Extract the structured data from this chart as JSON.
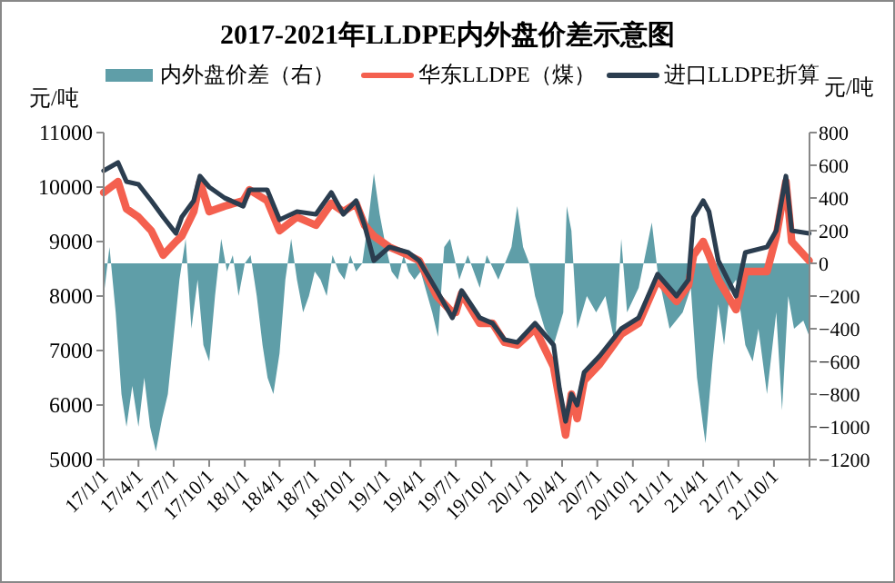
{
  "chart_data": {
    "type": "line",
    "title": "2017-2021年LLDPE内外盘价差示意图",
    "ylabel": "元/吨",
    "y2label": "元/吨",
    "legend": "top",
    "xlim": [
      "2017-01-01",
      "2022-01-01"
    ],
    "xticks": [
      {
        "value": "2017-01-01",
        "label": "17/1/1"
      },
      {
        "value": "2017-04-01",
        "label": "17/4/1"
      },
      {
        "value": "2017-07-01",
        "label": "17/7/1"
      },
      {
        "value": "2017-10-01",
        "label": "17/10/1"
      },
      {
        "value": "2018-01-01",
        "label": "18/1/1"
      },
      {
        "value": "2018-04-01",
        "label": "18/4/1"
      },
      {
        "value": "2018-07-01",
        "label": "18/7/1"
      },
      {
        "value": "2018-10-01",
        "label": "18/10/1"
      },
      {
        "value": "2019-01-01",
        "label": "19/1/1"
      },
      {
        "value": "2019-04-01",
        "label": "19/4/1"
      },
      {
        "value": "2019-07-01",
        "label": "19/7/1"
      },
      {
        "value": "2019-10-01",
        "label": "19/10/1"
      },
      {
        "value": "2020-01-01",
        "label": "20/1/1"
      },
      {
        "value": "2020-04-01",
        "label": "20/4/1"
      },
      {
        "value": "2020-07-01",
        "label": "20/7/1"
      },
      {
        "value": "2020-10-01",
        "label": "20/10/1"
      },
      {
        "value": "2021-01-01",
        "label": "21/1/1"
      },
      {
        "value": "2021-04-01",
        "label": "21/4/1"
      },
      {
        "value": "2021-07-01",
        "label": "21/7/1"
      },
      {
        "value": "2021-10-01",
        "label": "21/10/1"
      },
      {
        "value": "2022-01-01",
        "label": null
      }
    ],
    "ylim": [
      5000,
      11000
    ],
    "yticks": [
      5000,
      6000,
      7000,
      8000,
      9000,
      10000,
      11000
    ],
    "y2lim": [
      -1200,
      800
    ],
    "y2ticks": [
      -1200,
      -1000,
      -800,
      -600,
      -400,
      -200,
      0,
      200,
      400,
      600,
      800
    ],
    "series": [
      {
        "name": "内外盘价差（右）",
        "type": "area",
        "axis": "y2",
        "color": "#5f9ea8",
        "x": [
          "2017-01-01",
          "2017-01-16",
          "2017-02-01",
          "2017-02-16",
          "2017-03-01",
          "2017-03-16",
          "2017-04-01",
          "2017-04-16",
          "2017-05-01",
          "2017-05-16",
          "2017-06-01",
          "2017-06-16",
          "2017-07-01",
          "2017-07-16",
          "2017-08-01",
          "2017-08-16",
          "2017-09-01",
          "2017-09-16",
          "2017-10-01",
          "2017-10-16",
          "2017-11-01",
          "2017-11-16",
          "2017-12-01",
          "2017-12-16",
          "2018-01-01",
          "2018-01-16",
          "2018-02-01",
          "2018-02-16",
          "2018-03-01",
          "2018-03-16",
          "2018-04-01",
          "2018-04-16",
          "2018-05-01",
          "2018-05-16",
          "2018-06-01",
          "2018-06-16",
          "2018-07-01",
          "2018-07-16",
          "2018-08-01",
          "2018-08-16",
          "2018-09-01",
          "2018-09-16",
          "2018-10-01",
          "2018-10-16",
          "2018-11-01",
          "2018-11-16",
          "2018-12-01",
          "2018-12-16",
          "2019-01-01",
          "2019-01-16",
          "2019-02-01",
          "2019-02-16",
          "2019-03-01",
          "2019-03-16",
          "2019-04-01",
          "2019-05-01",
          "2019-05-16",
          "2019-06-01",
          "2019-06-16",
          "2019-07-10",
          "2019-08-01",
          "2019-09-01",
          "2019-09-19",
          "2019-10-19",
          "2019-11-22",
          "2019-12-07",
          "2019-12-22",
          "2020-01-07",
          "2020-01-22",
          "2020-02-16",
          "2020-03-10",
          "2020-04-04",
          "2020-04-13",
          "2020-04-25",
          "2020-05-10",
          "2020-06-04",
          "2020-06-28",
          "2020-07-22",
          "2020-08-16",
          "2020-09-01",
          "2020-09-16",
          "2020-10-16",
          "2020-11-19",
          "2020-12-04",
          "2021-01-04",
          "2021-02-07",
          "2021-02-28",
          "2021-03-16",
          "2021-04-01",
          "2021-04-07",
          "2021-04-25",
          "2021-05-10",
          "2021-05-25",
          "2021-06-10",
          "2021-06-25",
          "2021-07-19",
          "2021-08-07",
          "2021-08-22",
          "2021-09-13",
          "2021-10-07",
          "2021-10-22",
          "2021-11-07",
          "2021-11-22",
          "2021-12-16",
          "2022-01-01"
        ],
        "values": [
          -200,
          100,
          -300,
          -800,
          -1000,
          -750,
          -1000,
          -700,
          -1000,
          -1150,
          -950,
          -800,
          -450,
          -100,
          150,
          -400,
          -100,
          -500,
          -600,
          -200,
          150,
          -50,
          50,
          -200,
          0,
          50,
          -200,
          -500,
          -700,
          -800,
          -550,
          -100,
          150,
          -100,
          -300,
          -200,
          -50,
          -100,
          -200,
          50,
          -50,
          -100,
          50,
          -50,
          0,
          250,
          550,
          300,
          100,
          -50,
          -100,
          50,
          -50,
          -100,
          -50,
          -300,
          -450,
          100,
          150,
          -100,
          50,
          -150,
          50,
          -100,
          100,
          350,
          100,
          0,
          -200,
          -400,
          -500,
          -300,
          350,
          200,
          -400,
          -200,
          -300,
          -200,
          -500,
          150,
          -300,
          -150,
          250,
          -50,
          -400,
          -300,
          -150,
          -700,
          -1000,
          -1100,
          -600,
          -250,
          -500,
          -150,
          -100,
          -500,
          -600,
          -400,
          -800,
          -300,
          -900,
          -200,
          -400,
          -350,
          -450
        ]
      },
      {
        "name": "华东LLDPE（煤）",
        "color": "#f4604f",
        "x": [
          "2017-01-01",
          "2017-02-07",
          "2017-03-01",
          "2017-04-01",
          "2017-05-04",
          "2017-06-04",
          "2017-07-07",
          "2017-07-22",
          "2017-08-22",
          "2017-09-07",
          "2017-10-01",
          "2017-11-10",
          "2017-12-28",
          "2018-01-13",
          "2018-02-28",
          "2018-04-01",
          "2018-05-16",
          "2018-07-04",
          "2018-08-13",
          "2018-09-13",
          "2018-10-16",
          "2018-11-07",
          "2018-12-01",
          "2019-01-10",
          "2019-02-28",
          "2019-03-28",
          "2019-05-13",
          "2019-06-22",
          "2019-07-01",
          "2019-07-16",
          "2019-09-01",
          "2019-10-04",
          "2019-11-04",
          "2019-12-07",
          "2020-01-22",
          "2020-03-10",
          "2020-03-25",
          "2020-04-10",
          "2020-04-25",
          "2020-05-10",
          "2020-05-28",
          "2020-07-07",
          "2020-09-01",
          "2020-10-16",
          "2020-12-04",
          "2021-01-22",
          "2021-02-22",
          "2021-03-07",
          "2021-04-01",
          "2021-04-16",
          "2021-05-10",
          "2021-06-25",
          "2021-07-19",
          "2021-09-13",
          "2021-10-07",
          "2021-11-01",
          "2021-11-16",
          "2021-12-31"
        ],
        "values": [
          9900,
          10100,
          9600,
          9450,
          9200,
          8750,
          9000,
          9100,
          9550,
          10100,
          9550,
          9650,
          9750,
          9950,
          9750,
          9200,
          9450,
          9300,
          9700,
          9550,
          9700,
          9300,
          9100,
          8900,
          8750,
          8650,
          8000,
          7700,
          7700,
          8050,
          7500,
          7500,
          7150,
          7100,
          7400,
          6700,
          6100,
          5450,
          6200,
          5750,
          6450,
          6750,
          7300,
          7500,
          8300,
          7900,
          8200,
          8750,
          9000,
          8750,
          8300,
          7750,
          8450,
          8450,
          9100,
          10100,
          9000,
          8650
        ]
      },
      {
        "name": "进口LLDPE折算",
        "color": "#2b3d4f",
        "x": [
          "2017-01-01",
          "2017-02-07",
          "2017-03-01",
          "2017-04-01",
          "2017-05-04",
          "2017-06-04",
          "2017-07-07",
          "2017-07-22",
          "2017-08-22",
          "2017-09-07",
          "2017-10-01",
          "2017-11-10",
          "2017-12-28",
          "2018-01-13",
          "2018-02-28",
          "2018-04-01",
          "2018-05-16",
          "2018-07-04",
          "2018-08-13",
          "2018-09-13",
          "2018-10-16",
          "2018-11-07",
          "2018-12-01",
          "2019-01-10",
          "2019-02-28",
          "2019-03-28",
          "2019-05-13",
          "2019-06-22",
          "2019-07-01",
          "2019-07-16",
          "2019-09-01",
          "2019-10-04",
          "2019-11-04",
          "2019-12-07",
          "2020-01-22",
          "2020-03-10",
          "2020-03-25",
          "2020-04-10",
          "2020-04-25",
          "2020-05-10",
          "2020-05-28",
          "2020-07-07",
          "2020-09-01",
          "2020-10-16",
          "2020-12-04",
          "2021-01-22",
          "2021-02-22",
          "2021-03-07",
          "2021-04-01",
          "2021-04-16",
          "2021-05-10",
          "2021-06-25",
          "2021-07-19",
          "2021-09-13",
          "2021-10-07",
          "2021-11-01",
          "2021-11-16",
          "2021-12-31"
        ],
        "values": [
          10300,
          10450,
          10100,
          10050,
          9750,
          9450,
          9150,
          9450,
          9750,
          10200,
          10000,
          9800,
          9650,
          9950,
          9950,
          9400,
          9550,
          9500,
          9900,
          9500,
          9750,
          9300,
          8650,
          8900,
          8800,
          8650,
          8100,
          7600,
          7750,
          8100,
          7600,
          7500,
          7200,
          7150,
          7500,
          7100,
          6300,
          5700,
          6200,
          6000,
          6600,
          6900,
          7400,
          7600,
          8400,
          8000,
          8300,
          9450,
          9750,
          9550,
          8650,
          8000,
          8800,
          8900,
          9200,
          10200,
          9200,
          9150
        ]
      }
    ]
  }
}
